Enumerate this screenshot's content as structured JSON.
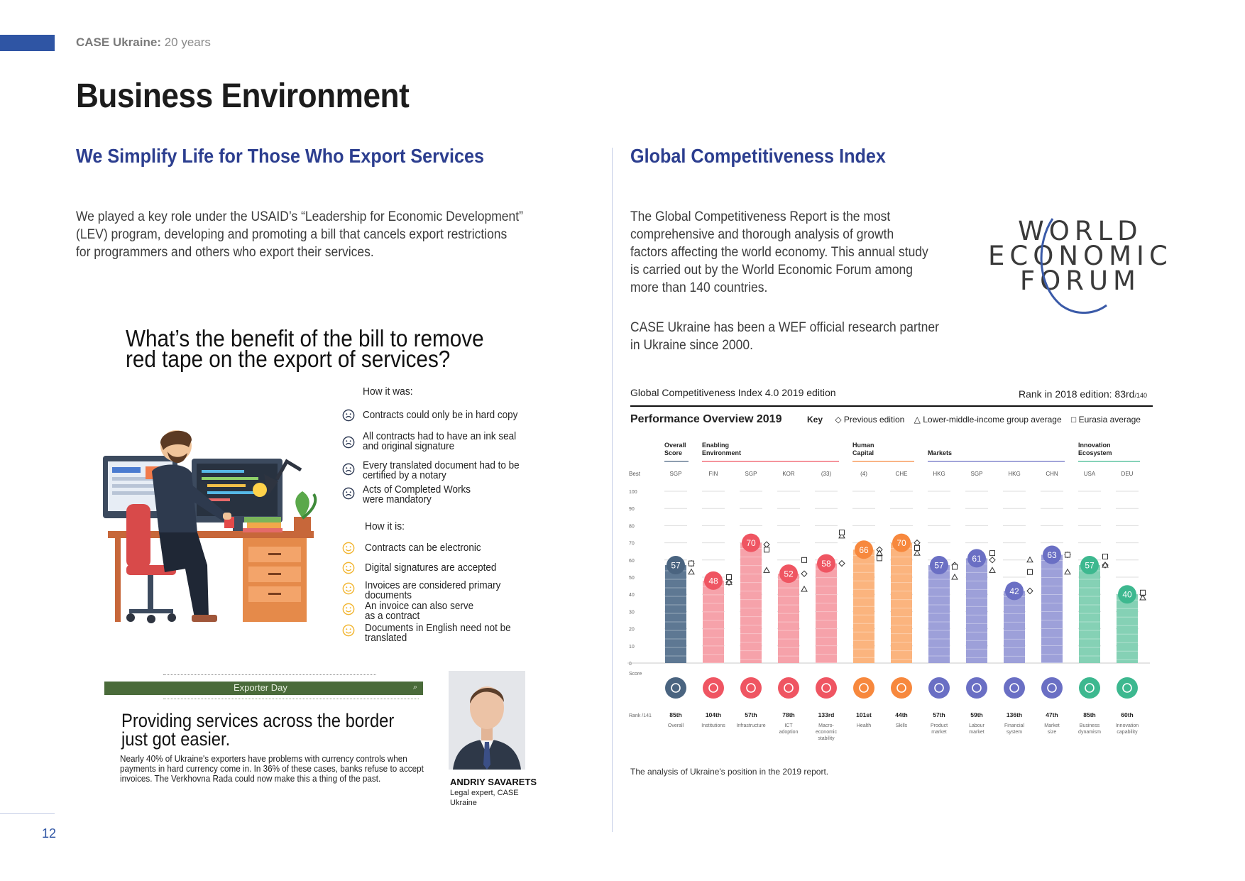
{
  "header": {
    "brand": "CASE Ukraine:",
    "years": "20 years"
  },
  "page_title": "Business Environment",
  "left": {
    "heading": "We Simplify Life for Those Who Export Services",
    "paragraph_lines": [
      "We played a key role under the USAID’s “Leadership for Economic Development”",
      "(LEV) program, developing and promoting a bill that cancels export restrictions",
      "for programmers and others who export their services."
    ]
  },
  "infographic": {
    "question_lines": [
      "What’s the benefit of the bill to remove",
      "red tape on the export of services?"
    ],
    "was_heading": "How it was:",
    "was_items": [
      "Contracts could only be in hard copy",
      "All contracts had to have an ink seal and original signature",
      "Every translated document had to be certified by a notary",
      "Acts of Completed Works were mandatory"
    ],
    "is_heading": "How it is:",
    "is_items": [
      "Contracts can be electronic",
      "Digital signatures are accepted",
      "Invoices are considered primary documents",
      "An invoice can also serve as a contract",
      "Documents in English need not be translated"
    ]
  },
  "news": {
    "banner": "Exporter Day",
    "headline_lines": [
      "Providing services across the border",
      "just got easier."
    ],
    "body_lines": [
      "Nearly 40% of Ukraine's exporters have problems with currency controls when",
      "payments in hard currency come in. In 36% of these cases, banks refuse to accept",
      "invoices. The Verkhovna Rada could now make this a thing of the past."
    ],
    "person_name": "ANDRIY SAVARETS",
    "person_role_lines": [
      "Legal expert, CASE",
      "Ukraine"
    ]
  },
  "right": {
    "heading": "Global Competitiveness Index",
    "paragraph_lines": [
      "The Global Competitiveness Report is the most",
      "comprehensive and thorough analysis of growth",
      "factors affecting the world economy. This annual study",
      "is carried out by the World Economic Forum among",
      "more than 140 countries."
    ],
    "paragraph2_lines": [
      "CASE Ukraine has been a WEF official research partner",
      "in Ukraine since 2000."
    ],
    "logo_lines": [
      "WORLD",
      "ECONOMIC",
      "FORUM"
    ]
  },
  "gci": {
    "title": "Global Competitiveness Index 4.0 2019 edition",
    "rank_label": "Rank in 2018 edition: 83rd",
    "rank_of": "/140",
    "subtitle": "Performance Overview 2019",
    "key_label": "Key",
    "key_items": [
      "◇ Previous edition",
      "△ Lower-middle-income group average",
      "□ Eurasia average"
    ],
    "caption": "The analysis of Ukraine's position in the 2019 report."
  },
  "chart_data": {
    "type": "bar",
    "ylim": [
      0,
      100
    ],
    "yticks": [
      0,
      10,
      20,
      30,
      40,
      50,
      60,
      70,
      80,
      90,
      100
    ],
    "best_label": "Best",
    "score_label": "Score",
    "rank_label": "Rank /141",
    "groups": [
      {
        "name": "Overall Score",
        "lines": [
          "Overall",
          "Score"
        ],
        "start": 0,
        "end": 0
      },
      {
        "name": "Enabling Environment",
        "lines": [
          "Enabling",
          "Environment"
        ],
        "start": 1,
        "end": 4
      },
      {
        "name": "Human Capital",
        "lines": [
          "Human",
          "Capital"
        ],
        "start": 5,
        "end": 6
      },
      {
        "name": "Markets",
        "lines": [
          "Markets"
        ],
        "start": 7,
        "end": 10
      },
      {
        "name": "Innovation Ecosystem",
        "lines": [
          "Innovation",
          "Ecosystem"
        ],
        "start": 11,
        "end": 12
      }
    ],
    "categories": [
      "Overall",
      "Institutions",
      "Infrastructure",
      "ICT adoption",
      "Macro-economic stability",
      "Health",
      "Skills",
      "Product market",
      "Labour market",
      "Financial system",
      "Market size",
      "Business dynamism",
      "Innovation capability"
    ],
    "category_lines": [
      [
        "Overall"
      ],
      [
        "Institutions"
      ],
      [
        "Infrastructure"
      ],
      [
        "ICT",
        "adoption"
      ],
      [
        "Macro-",
        "economic",
        "stability"
      ],
      [
        "Health"
      ],
      [
        "Skills"
      ],
      [
        "Product",
        "market"
      ],
      [
        "Labour",
        "market"
      ],
      [
        "Financial",
        "system"
      ],
      [
        "Market",
        "size"
      ],
      [
        "Business",
        "dynamism"
      ],
      [
        "Innovation",
        "capability"
      ]
    ],
    "best": [
      "SGP",
      "FIN",
      "SGP",
      "KOR",
      "(33)",
      "(4)",
      "CHE",
      "HKG",
      "SGP",
      "HKG",
      "CHN",
      "USA",
      "DEU"
    ],
    "values": [
      57,
      48,
      70,
      52,
      58,
      66,
      70,
      57,
      61,
      42,
      63,
      57,
      40
    ],
    "ranks": [
      "85th",
      "104th",
      "57th",
      "78th",
      "133rd",
      "101st",
      "44th",
      "57th",
      "59th",
      "136th",
      "47th",
      "85th",
      "60th"
    ],
    "previous_edition": [
      58,
      47,
      69,
      52,
      58,
      66,
      70,
      57,
      60,
      42,
      63,
      57,
      40
    ],
    "lower_middle_income_avg": [
      53,
      47,
      54,
      43,
      74,
      64,
      64,
      50,
      54,
      60,
      53,
      57,
      38
    ],
    "eurasia_avg": [
      58,
      50,
      66,
      60,
      76,
      61,
      67,
      56,
      64,
      53,
      63,
      62,
      41
    ],
    "colors": [
      "#4a6480",
      "#ef5562",
      "#ef5562",
      "#ef5562",
      "#ef5562",
      "#f7883d",
      "#f7883d",
      "#6a6fc4",
      "#6a6fc4",
      "#6a6fc4",
      "#6a6fc4",
      "#3db88f",
      "#3db88f"
    ],
    "bar_tints": [
      "#5e7893",
      "#f6a2aa",
      "#f6a2aa",
      "#f6a2aa",
      "#f6a2aa",
      "#fbb47e",
      "#fbb47e",
      "#9da0d9",
      "#9da0d9",
      "#9da0d9",
      "#9da0d9",
      "#85d1b5",
      "#85d1b5"
    ],
    "group_colors": [
      "#4a6480",
      "#ef5562",
      "#f7883d",
      "#6a6fc4",
      "#3db88f"
    ],
    "icons": [
      "target-icon",
      "institution-icon",
      "infrastructure-icon",
      "chip-icon",
      "trend-icon",
      "health-icon",
      "skills-icon",
      "tag-icon",
      "people-icon",
      "card-icon",
      "expand-icon",
      "building-icon",
      "bulb-icon"
    ]
  }
}
